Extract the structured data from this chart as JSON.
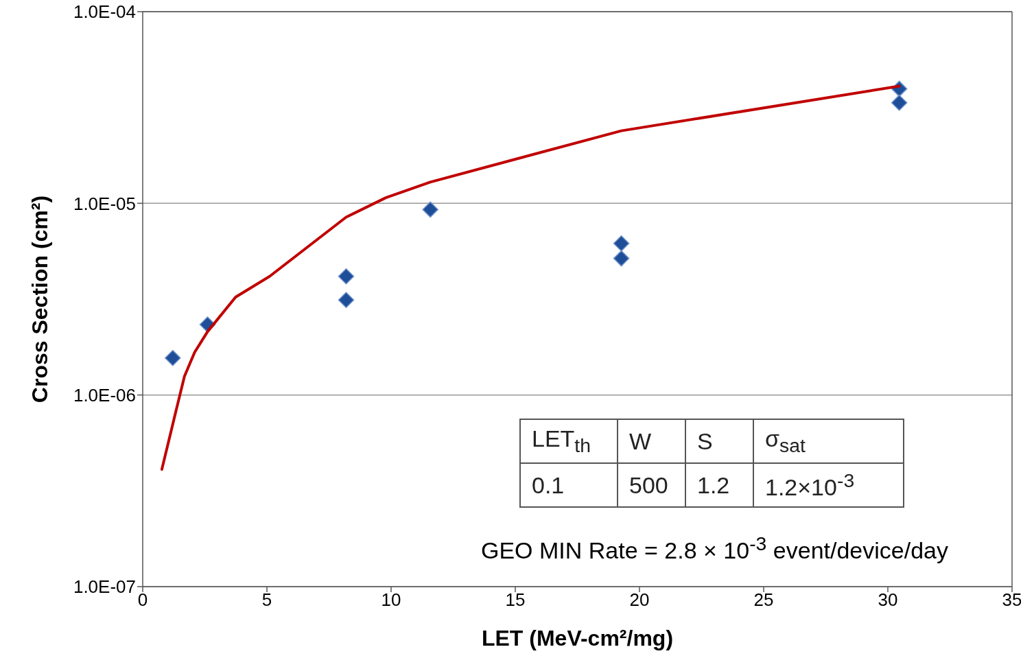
{
  "chart_data": {
    "type": "scatter",
    "xlabel": "LET (MeV-cm²/mg)",
    "ylabel": "Cross Section (cm²)",
    "log": "y",
    "xlim": [
      0,
      35
    ],
    "xticks": [
      0,
      5,
      10,
      15,
      20,
      25,
      30,
      35
    ],
    "ylim": [
      1e-07,
      0.0001
    ],
    "yticks": [
      {
        "value": 1e-07,
        "label": "1.0E-07"
      },
      {
        "value": 1e-06,
        "label": "1.0E-06"
      },
      {
        "value": 1e-05,
        "label": "1.0E-05"
      },
      {
        "value": 0.0001,
        "label": "1.0E-04"
      }
    ],
    "grid": "y",
    "legend": false,
    "marker": "diamond",
    "series": [
      {
        "color": "#1f4e99",
        "x": [
          1.21,
          2.61,
          8.19,
          8.19,
          11.58,
          19.27,
          19.27,
          30.46,
          30.46
        ],
        "values": [
          1.56e-06,
          2.33e-06,
          4.16e-06,
          3.13e-06,
          9.28e-06,
          6.18e-06,
          5.16e-06,
          3.96e-05,
          3.35e-05
        ]
      },
      {
        "type": "line",
        "color": "#c00000",
        "marker": "none",
        "line_style": "solid",
        "x": [
          0.77,
          1.32,
          1.68,
          2.09,
          2.61,
          3.74,
          5.11,
          8.19,
          9.79,
          11.58,
          15.01,
          19.27,
          30.46
        ],
        "values": [
          4.09e-07,
          8.06e-07,
          1.25e-06,
          1.67e-06,
          2.14e-06,
          3.24e-06,
          4.16e-06,
          8.47e-06,
          1.07e-05,
          1.29e-05,
          1.7e-05,
          2.39e-05,
          4.09e-05
        ]
      }
    ],
    "annotations": [
      "LET$_{th}$",
      "W",
      "S",
      "σ$_{sat}$",
      "0.1",
      "500",
      "1.2",
      "1.2×10$^{-3}$",
      "GEO MIN Rate = 2.8 × 10$^{-3}$ event/device/day"
    ]
  }
}
